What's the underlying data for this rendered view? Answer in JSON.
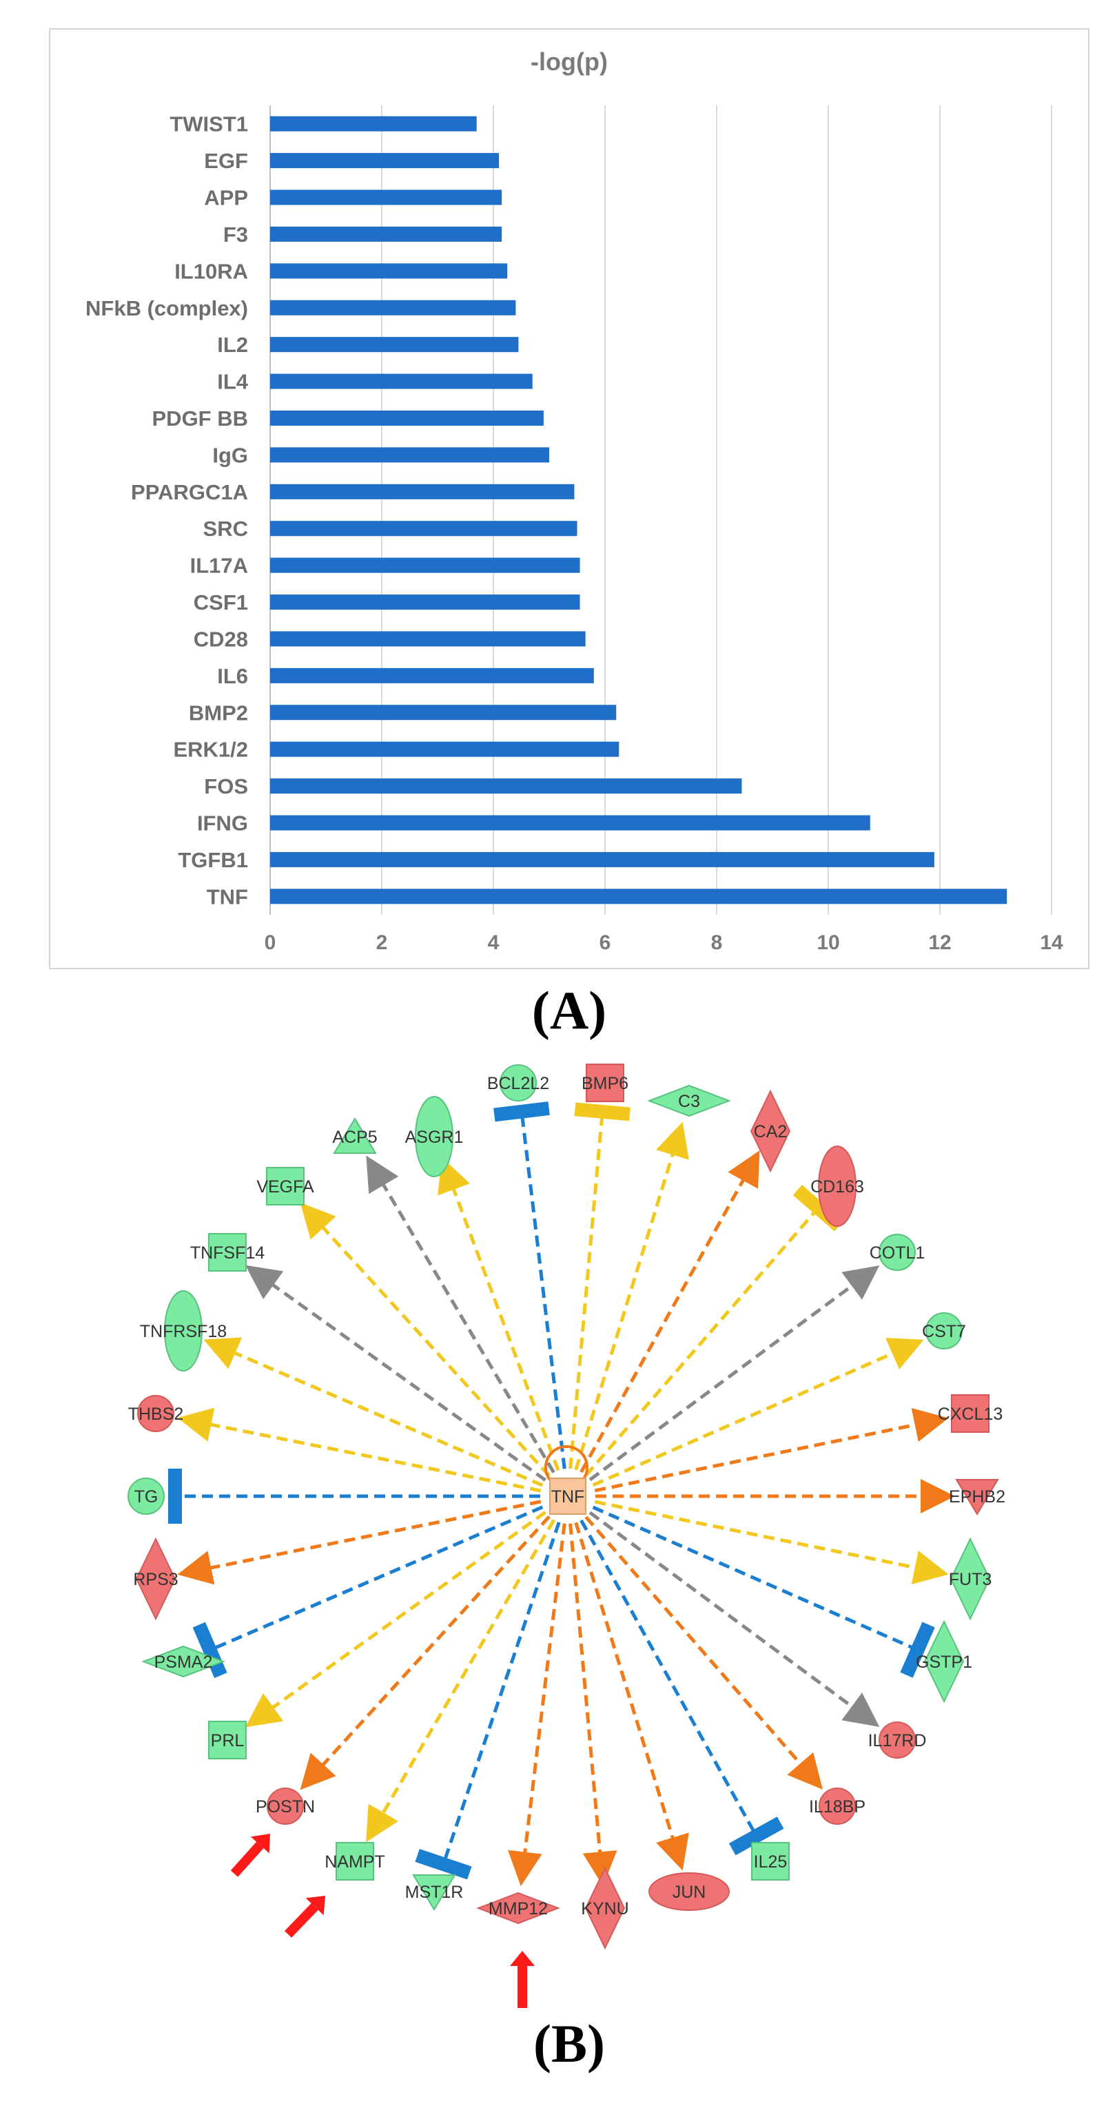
{
  "chart_data": {
    "type": "bar",
    "orientation": "horizontal",
    "title": "-log(p)",
    "xlabel": "",
    "ylabel": "",
    "xlim": [
      0,
      14
    ],
    "ticks": [
      0,
      2,
      4,
      6,
      8,
      10,
      12,
      14
    ],
    "grid": true,
    "categories": [
      "TWIST1",
      "EGF",
      "APP",
      "F3",
      "IL10RA",
      "NFkB (complex)",
      "IL2",
      "IL4",
      "PDGF BB",
      "IgG",
      "PPARGC1A",
      "SRC",
      "IL17A",
      "CSF1",
      "CD28",
      "IL6",
      "BMP2",
      "ERK1/2",
      "FOS",
      "IFNG",
      "TGFB1",
      "TNF"
    ],
    "values": [
      3.7,
      4.1,
      4.15,
      4.15,
      4.25,
      4.4,
      4.45,
      4.7,
      4.9,
      5.0,
      5.45,
      5.5,
      5.55,
      5.55,
      5.65,
      5.8,
      6.2,
      6.25,
      8.45,
      10.75,
      11.9,
      13.2
    ],
    "bar_color": "#1f6fc9"
  },
  "labels": {
    "panel_a": "(A)",
    "panel_b": "(B)"
  },
  "network": {
    "center": "TNF",
    "colors": {
      "up": "#f07373",
      "up_strong": "#ee5050",
      "down": "#7deaa2",
      "activation": "#f07a1a",
      "inhibition_blue": "#1a7fd0",
      "affects_yellow": "#f2c81e",
      "unknown_gray": "#888888",
      "arrow_red": "#ff1a1a",
      "center_fill": "#f8c69a"
    },
    "nodes": [
      {
        "label": "BCL2L2",
        "color": "down",
        "shape": "circle",
        "edge": "inhibit"
      },
      {
        "label": "BMP6",
        "color": "up",
        "shape": "square",
        "edge": "inhibit_yellow"
      },
      {
        "label": "C3",
        "color": "down",
        "shape": "diamond",
        "edge": "yellow"
      },
      {
        "label": "CA2",
        "color": "up",
        "shape": "diamond",
        "edge": "orange"
      },
      {
        "label": "CD163",
        "color": "up",
        "shape": "ellipse",
        "edge": "inhibit_yellow"
      },
      {
        "label": "COTL1",
        "color": "down",
        "shape": "circle",
        "edge": "gray"
      },
      {
        "label": "CST7",
        "color": "down",
        "shape": "circle",
        "edge": "yellow"
      },
      {
        "label": "CXCL13",
        "color": "up",
        "shape": "square",
        "edge": "orange"
      },
      {
        "label": "EPHB2",
        "color": "up",
        "shape": "triangle-down",
        "edge": "orange"
      },
      {
        "label": "FUT3",
        "color": "down",
        "shape": "diamond",
        "edge": "yellow"
      },
      {
        "label": "GSTP1",
        "color": "down",
        "shape": "diamond",
        "edge": "inhibit"
      },
      {
        "label": "IL17RD",
        "color": "up",
        "shape": "circle",
        "edge": "gray"
      },
      {
        "label": "IL18BP",
        "color": "up",
        "shape": "circle",
        "edge": "orange"
      },
      {
        "label": "IL25",
        "color": "down",
        "shape": "square",
        "edge": "inhibit"
      },
      {
        "label": "JUN",
        "color": "up",
        "shape": "ellipse",
        "edge": "orange"
      },
      {
        "label": "KYNU",
        "color": "up",
        "shape": "diamond",
        "edge": "orange"
      },
      {
        "label": "MMP12",
        "color": "up",
        "shape": "diamond",
        "edge": "orange"
      },
      {
        "label": "MST1R",
        "color": "down",
        "shape": "triangle-down",
        "edge": "inhibit"
      },
      {
        "label": "NAMPT",
        "color": "down",
        "shape": "square",
        "edge": "yellow"
      },
      {
        "label": "POSTN",
        "color": "up",
        "shape": "circle",
        "edge": "orange"
      },
      {
        "label": "PRL",
        "color": "down",
        "shape": "square",
        "edge": "yellow"
      },
      {
        "label": "PSMA2",
        "color": "down",
        "shape": "diamond",
        "edge": "inhibit"
      },
      {
        "label": "RPS3",
        "color": "up",
        "shape": "diamond",
        "edge": "orange"
      },
      {
        "label": "TG",
        "color": "down",
        "shape": "circle",
        "edge": "inhibit"
      },
      {
        "label": "THBS2",
        "color": "up",
        "shape": "circle",
        "edge": "yellow"
      },
      {
        "label": "TNFRSF18",
        "color": "down",
        "shape": "ellipse",
        "edge": "yellow"
      },
      {
        "label": "TNFSF14",
        "color": "down",
        "shape": "square",
        "edge": "gray"
      },
      {
        "label": "VEGFA",
        "color": "down",
        "shape": "square",
        "edge": "yellow"
      },
      {
        "label": "ACP5",
        "color": "down",
        "shape": "triangle-up",
        "edge": "gray"
      },
      {
        "label": "ASGR1",
        "color": "down",
        "shape": "ellipse",
        "edge": "yellow"
      }
    ],
    "highlighted": [
      "POSTN",
      "NAMPT",
      "MMP12"
    ]
  }
}
